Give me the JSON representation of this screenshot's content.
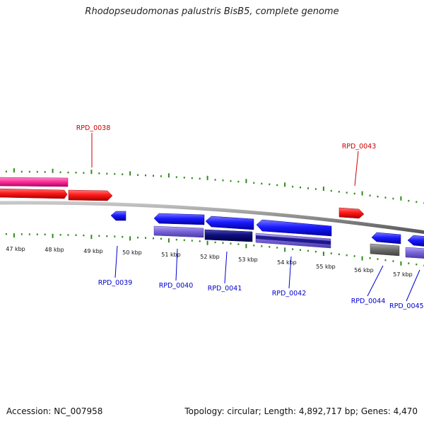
{
  "header": {
    "title": "Rhodopseudomonas palustris BisB5, complete genome"
  },
  "footer": {
    "accession": "Accession: NC_007958",
    "summary": "Topology: circular; Length: 4,892,717 bp; Genes: 4,470"
  },
  "colors": {
    "backbone": "#8c8c8c",
    "tick": "#2e8b1a",
    "forward_label": "#cc0000",
    "reverse_label": "#0000cc",
    "gene_red": "#ff1a1a",
    "gene_pink": "#ff3399",
    "gene_blue": "#1a1aff",
    "gene_lavender": "#7a66d9",
    "gene_navy": "#0d0d80",
    "gene_gray": "#707070"
  },
  "axis": {
    "kbp_labels": [
      "47 kbp",
      "48 kbp",
      "49 kbp",
      "50 kbp",
      "51 kbp",
      "52 kbp",
      "53 kbp",
      "54 kbp",
      "55 kbp",
      "56 kbp",
      "57 kbp"
    ]
  },
  "gene_labels": {
    "forward": [
      "RPD_0038",
      "RPD_0043"
    ],
    "reverse": [
      "RPD_0039",
      "RPD_0040",
      "RPD_0041",
      "RPD_0042",
      "RPD_0044",
      "RPD_0045"
    ]
  }
}
